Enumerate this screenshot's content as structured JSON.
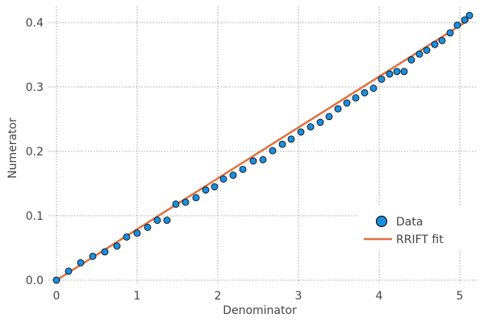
{
  "chart_data": {
    "type": "scatter",
    "xlabel": "Denominator",
    "ylabel": "Numerator",
    "xlim": [
      -0.1,
      5.2
    ],
    "ylim": [
      -0.005,
      0.425
    ],
    "x_ticks": [
      0,
      1,
      2,
      3,
      4,
      5
    ],
    "x_tick_labels": [
      "0",
      "1",
      "2",
      "3",
      "4",
      "5"
    ],
    "y_ticks": [
      0.0,
      0.1,
      0.2,
      0.3,
      0.4
    ],
    "y_tick_labels": [
      "0.0",
      "0.1",
      "0.2",
      "0.3",
      "0.4"
    ],
    "grid": true,
    "legend_position": "bottom-right",
    "series": [
      {
        "name": "Data",
        "kind": "scatter",
        "color": "#1a8fe0",
        "edge_color": "#111111",
        "x": [
          0.0,
          0.15,
          0.3,
          0.45,
          0.6,
          0.75,
          0.87,
          1.0,
          1.13,
          1.25,
          1.37,
          1.48,
          1.6,
          1.73,
          1.85,
          1.96,
          2.07,
          2.19,
          2.31,
          2.44,
          2.56,
          2.68,
          2.8,
          2.91,
          3.03,
          3.15,
          3.27,
          3.38,
          3.49,
          3.6,
          3.71,
          3.82,
          3.93,
          4.03,
          4.13,
          4.22,
          4.31,
          4.4,
          4.5,
          4.59,
          4.69,
          4.78,
          4.88,
          4.97,
          5.06,
          5.12
        ],
        "y": [
          0.0,
          0.014,
          0.027,
          0.037,
          0.044,
          0.053,
          0.067,
          0.073,
          0.082,
          0.093,
          0.093,
          0.118,
          0.121,
          0.128,
          0.14,
          0.145,
          0.157,
          0.163,
          0.172,
          0.185,
          0.187,
          0.201,
          0.211,
          0.219,
          0.23,
          0.238,
          0.245,
          0.254,
          0.266,
          0.275,
          0.283,
          0.291,
          0.298,
          0.312,
          0.32,
          0.324,
          0.324,
          0.342,
          0.351,
          0.357,
          0.366,
          0.372,
          0.384,
          0.396,
          0.404,
          0.411
        ]
      },
      {
        "name": "RRIFT fit",
        "kind": "line",
        "color": "#e0703f",
        "x": [
          0.0,
          5.1
        ],
        "y": [
          0.0,
          0.403
        ]
      }
    ]
  }
}
